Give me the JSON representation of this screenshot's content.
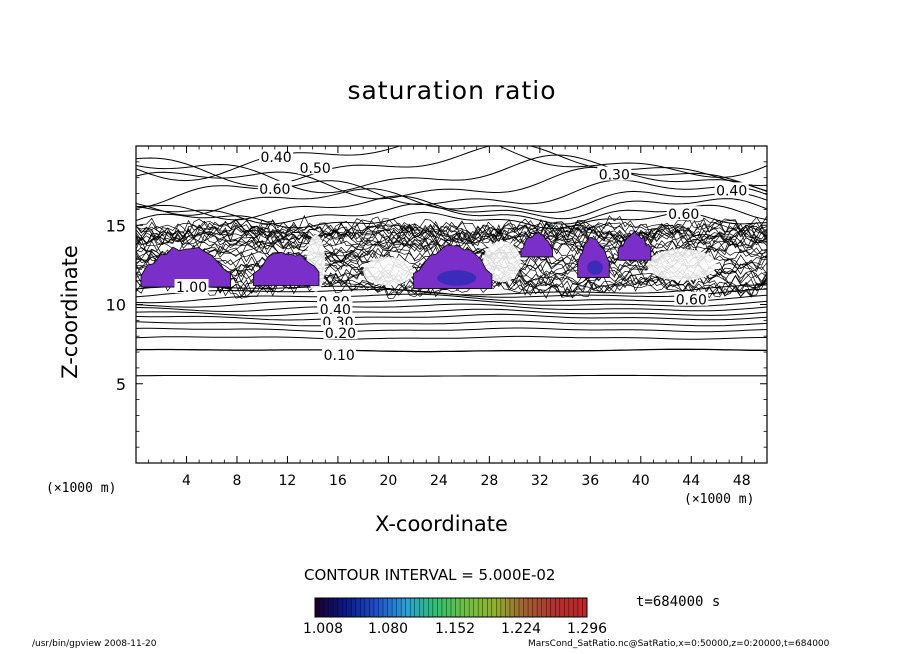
{
  "chart_data": {
    "type": "contour",
    "title": "saturation ratio",
    "xlabel": "X-coordinate",
    "ylabel": "Z-coordinate",
    "x_unit": "(×1000 m)",
    "xlim": [
      0,
      50
    ],
    "ylim": [
      0,
      20
    ],
    "x_ticks": [
      4,
      8,
      12,
      16,
      20,
      24,
      28,
      32,
      36,
      40,
      44,
      48
    ],
    "y_ticks": [
      5,
      10,
      15
    ],
    "contour_interval": "CONTOUR INTERVAL = 5.000E-02",
    "contour_labels": [
      {
        "text": "0.40",
        "x": 11.1,
        "z": 19.3
      },
      {
        "text": "0.50",
        "x": 14.2,
        "z": 18.6
      },
      {
        "text": "0.60",
        "x": 11.0,
        "z": 17.3
      },
      {
        "text": "0.30",
        "x": 37.9,
        "z": 18.2
      },
      {
        "text": "0.40",
        "x": 47.2,
        "z": 17.2
      },
      {
        "text": "0.60",
        "x": 43.4,
        "z": 15.7
      },
      {
        "text": "1.00",
        "x": 4.4,
        "z": 11.1
      },
      {
        "text": "0.80",
        "x": 15.7,
        "z": 10.2
      },
      {
        "text": "0.40",
        "x": 15.8,
        "z": 9.7
      },
      {
        "text": "0.30",
        "x": 16.0,
        "z": 8.9
      },
      {
        "text": "0.20",
        "x": 16.2,
        "z": 8.2
      },
      {
        "text": "0.10",
        "x": 16.1,
        "z": 6.8
      },
      {
        "text": "0.60",
        "x": 44.0,
        "z": 10.3
      }
    ],
    "shaded_regions": [
      {
        "x_range": [
          0.4,
          7.5
        ],
        "z_range": [
          11.1,
          13.6
        ]
      },
      {
        "x_range": [
          9.3,
          14.5
        ],
        "z_range": [
          11.2,
          13.3
        ]
      },
      {
        "x_range": [
          22.0,
          28.2
        ],
        "z_range": [
          11.0,
          13.7
        ]
      },
      {
        "x_range": [
          30.5,
          33.0
        ],
        "z_range": [
          13.0,
          14.5
        ]
      },
      {
        "x_range": [
          35.0,
          37.5
        ],
        "z_range": [
          11.7,
          14.2
        ]
      },
      {
        "x_range": [
          38.2,
          40.8
        ],
        "z_range": [
          12.8,
          14.5
        ]
      }
    ],
    "colorbar": {
      "ticks": [
        "1.008",
        "1.080",
        "1.152",
        "1.224",
        "1.296"
      ],
      "colors": [
        "#1a0033",
        "#0a1a8a",
        "#1e50c8",
        "#2aa0d8",
        "#30c070",
        "#70c040",
        "#90b030",
        "#a06030",
        "#b03030",
        "#c02828"
      ]
    },
    "time": "t=684000 s"
  },
  "footer": {
    "left": "/usr/bin/gpview   2008-11-20",
    "right": "MarsCond_SatRatio.nc@SatRatio,x=0:50000,z=0:20000,t=684000"
  }
}
